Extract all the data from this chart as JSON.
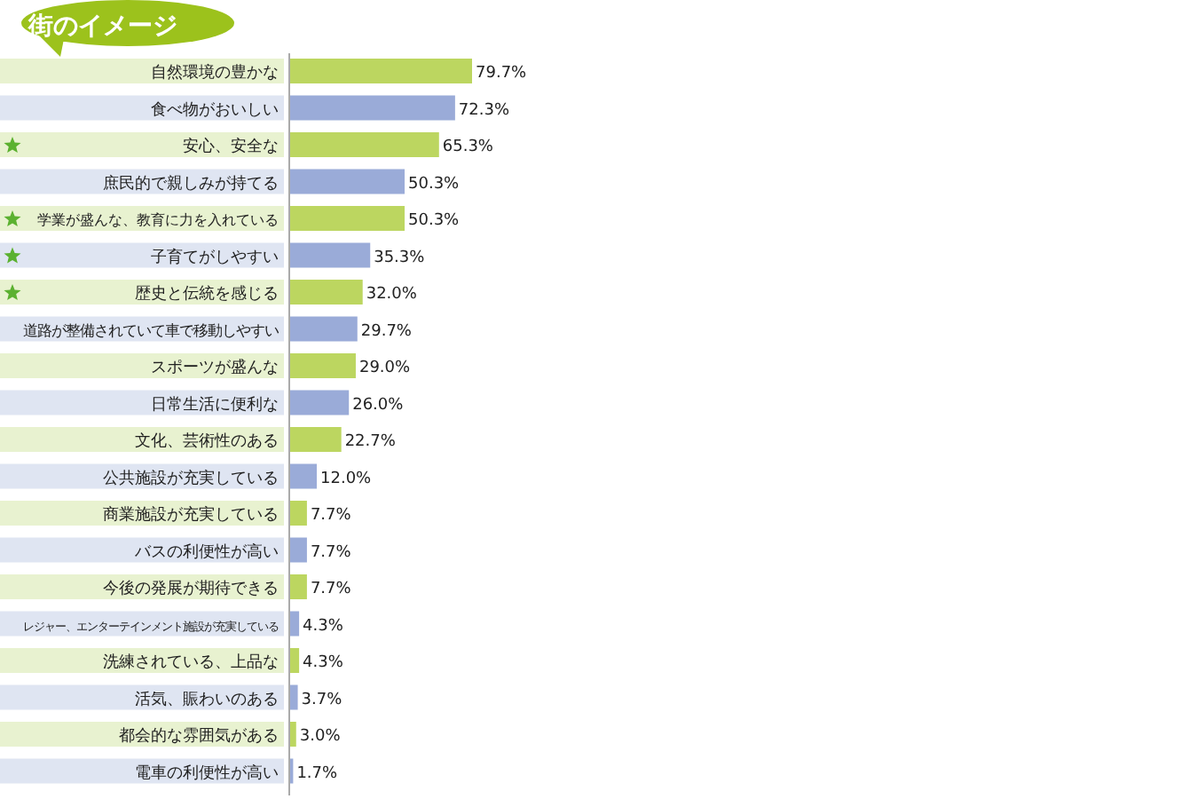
{
  "chart_data": {
    "type": "bar",
    "orientation": "horizontal",
    "title": "街のイメージ",
    "categories": [
      "自然環境の豊かな",
      "食べ物がおいしい",
      "安心、安全な",
      "庶民的で親しみが持てる",
      "学業が盛んな、教育に力を入れている",
      "子育てがしやすい",
      "歴史と伝統を感じる",
      "道路が整備されていて車で移動しやすい",
      "スポーツが盛んな",
      "日常生活に便利な",
      "文化、芸術性のある",
      "公共施設が充実している",
      "商業施設が充実している",
      "バスの利便性が高い",
      "今後の発展が期待できる",
      "レジャー、エンターテインメント施設が充実している",
      "洗練されている、上品な",
      "活気、賑わいのある",
      "都会的な雰囲気がある",
      "電車の利便性が高い"
    ],
    "values": [
      79.7,
      72.3,
      65.3,
      50.3,
      50.3,
      35.3,
      32.0,
      29.7,
      29.0,
      26.0,
      22.7,
      12.0,
      7.7,
      7.7,
      7.7,
      4.3,
      4.3,
      3.7,
      3.0,
      1.7
    ],
    "value_labels": [
      "79.7%",
      "72.3%",
      "65.3%",
      "50.3%",
      "50.3%",
      "35.3%",
      "32.0%",
      "29.7%",
      "29.0%",
      "26.0%",
      "22.7%",
      "12.0%",
      "7.7%",
      "7.7%",
      "7.7%",
      "4.3%",
      "4.3%",
      "3.7%",
      "3.0%",
      "1.7%"
    ],
    "colors": [
      "#bcd660",
      "#9aabd8",
      "#bcd660",
      "#9aabd8",
      "#bcd660",
      "#9aabd8",
      "#bcd660",
      "#9aabd8",
      "#bcd660",
      "#9aabd8",
      "#bcd660",
      "#9aabd8",
      "#bcd660",
      "#9aabd8",
      "#bcd660",
      "#9aabd8",
      "#bcd660",
      "#9aabd8",
      "#bcd660",
      "#9aabd8"
    ],
    "grid": false
  }
}
